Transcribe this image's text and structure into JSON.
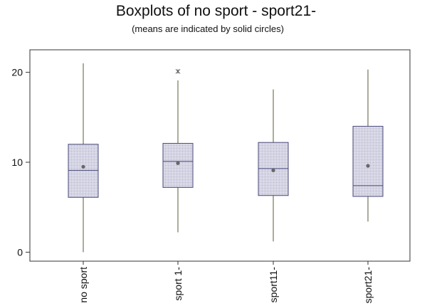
{
  "chart_data": {
    "type": "boxplot",
    "title": "Boxplots of no sport - sport21-",
    "subtitle": "(means are indicated by solid circles)",
    "xlabel": "",
    "ylabel": "",
    "ylim": [
      -1,
      22.5
    ],
    "yticks": [
      0,
      10,
      20
    ],
    "grid": false,
    "categories": [
      "no sport",
      "sport 1-",
      "sport11-",
      "sport21-"
    ],
    "boxes": [
      {
        "whisker_low": 0,
        "q1": 6.1,
        "median": 9.1,
        "q3": 12.0,
        "whisker_high": 21.0,
        "mean": 9.5,
        "outliers": []
      },
      {
        "whisker_low": 2.2,
        "q1": 7.2,
        "median": 10.1,
        "q3": 12.1,
        "whisker_high": 19.1,
        "mean": 9.9,
        "outliers": [
          20.1
        ]
      },
      {
        "whisker_low": 1.2,
        "q1": 6.3,
        "median": 9.3,
        "q3": 12.2,
        "whisker_high": 18.1,
        "mean": 9.1,
        "outliers": []
      },
      {
        "whisker_low": 3.4,
        "q1": 6.2,
        "median": 7.4,
        "q3": 14.0,
        "whisker_high": 20.3,
        "mean": 9.6,
        "outliers": []
      }
    ],
    "colors": {
      "box_fill": "#d4d4e4",
      "box_stroke": "#4a4a7a",
      "whisker": "#5a5a3a",
      "mean": "#666666",
      "axis": "#333333"
    }
  }
}
